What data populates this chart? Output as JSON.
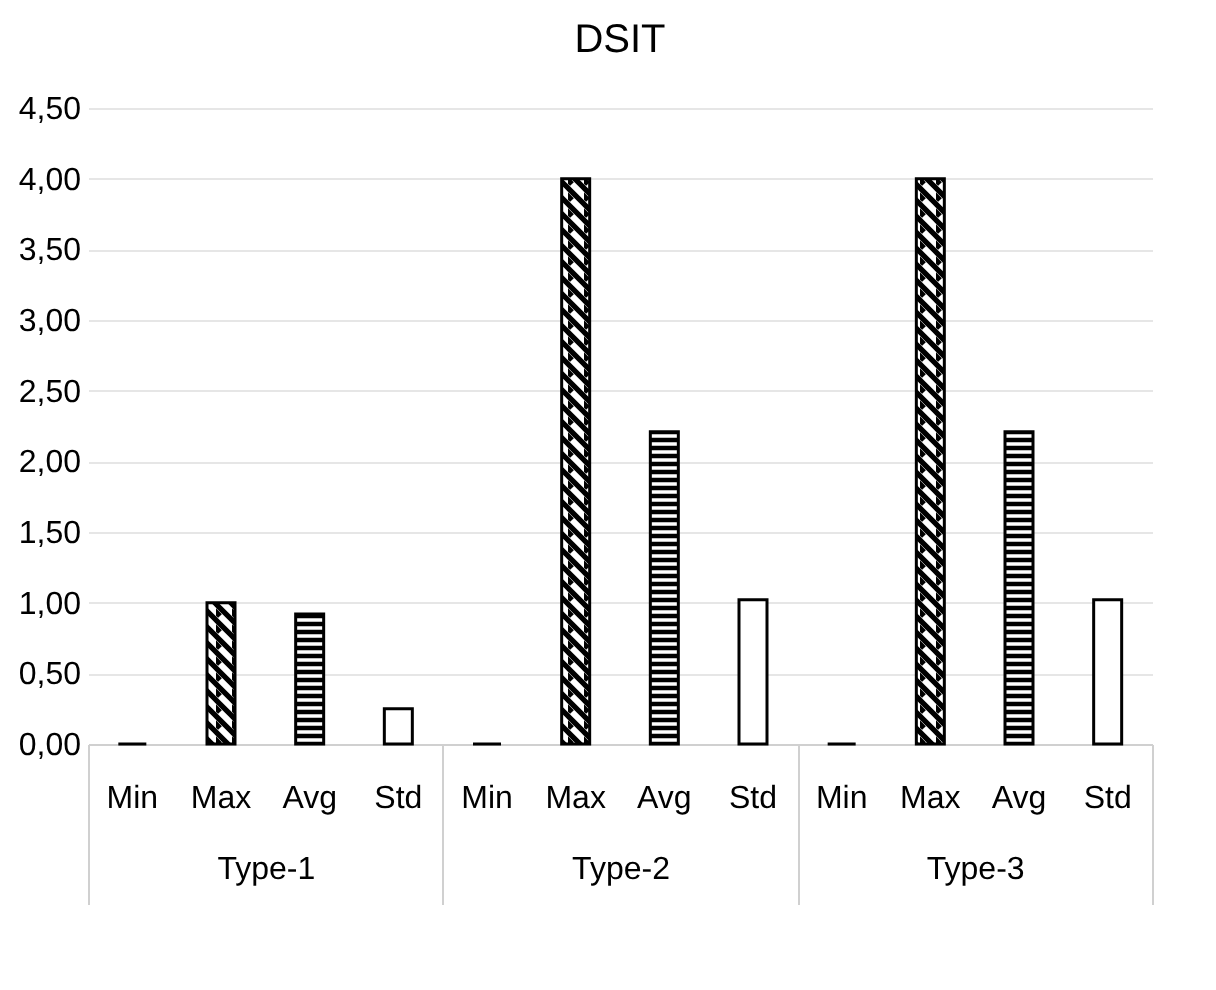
{
  "chart_data": {
    "type": "bar",
    "title": "DSIT",
    "categories": [
      "Type-1",
      "Type-2",
      "Type-3"
    ],
    "series": [
      {
        "name": "Min",
        "color": "#000000",
        "values": [
          0,
          0,
          0
        ]
      },
      {
        "name": "Max",
        "color": "#000000",
        "values": [
          1.0,
          4.0,
          4.0
        ]
      },
      {
        "name": "Avg",
        "color": "#000000",
        "values": [
          0.92,
          2.21,
          2.21
        ]
      },
      {
        "name": "Std",
        "color": "#ffffff",
        "values": [
          0.25,
          1.02,
          1.02
        ]
      }
    ],
    "ylim": [
      0,
      4.5
    ],
    "yticks": [
      {
        "value": 0,
        "label": "0,00"
      },
      {
        "value": 0.5,
        "label": "0,50"
      },
      {
        "value": 1,
        "label": "1,00"
      },
      {
        "value": 1.5,
        "label": "1,50"
      },
      {
        "value": 2,
        "label": "2,00"
      },
      {
        "value": 2.5,
        "label": "2,50"
      },
      {
        "value": 3,
        "label": "3,00"
      },
      {
        "value": 3.5,
        "label": "3,50"
      },
      {
        "value": 4,
        "label": "4,00"
      },
      {
        "value": 4.5,
        "label": "4,50"
      }
    ],
    "grid": "y",
    "legend": false
  }
}
